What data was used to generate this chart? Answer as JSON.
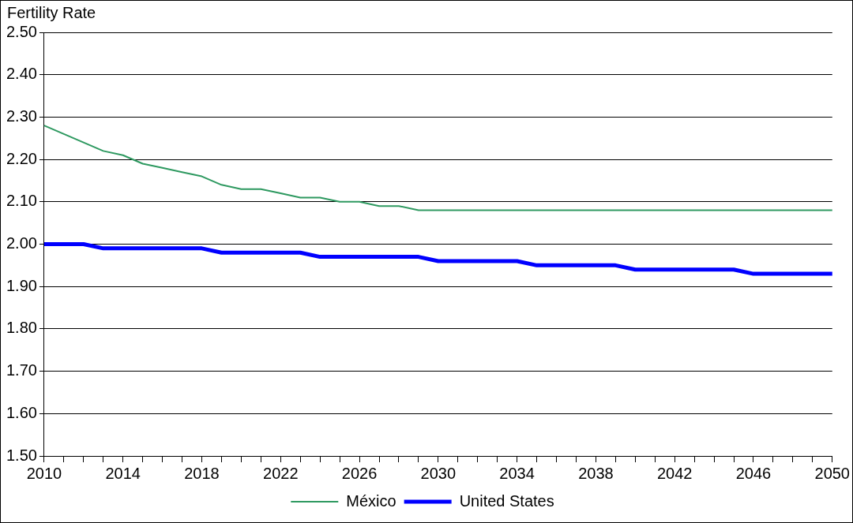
{
  "chart_data": {
    "type": "line",
    "ylabel": "Fertility Rate",
    "categories": [
      "2010",
      null,
      null,
      null,
      "2014",
      null,
      null,
      null,
      "2018",
      null,
      null,
      null,
      "2022",
      null,
      null,
      null,
      "2026",
      null,
      null,
      null,
      "2030",
      null,
      null,
      null,
      "2034",
      null,
      null,
      null,
      "2038",
      null,
      null,
      null,
      "2042",
      null,
      null,
      null,
      "2046",
      null,
      null,
      null,
      "2050"
    ],
    "series": [
      {
        "name": "México",
        "color": "#2e9960",
        "values": [
          2.28,
          2.26,
          2.24,
          2.22,
          2.21,
          2.19,
          2.18,
          2.17,
          2.16,
          2.14,
          2.13,
          2.13,
          2.12,
          2.11,
          2.11,
          2.1,
          2.1,
          2.09,
          2.09,
          2.08,
          2.08,
          2.08,
          2.08,
          2.08,
          2.08,
          2.08,
          2.08,
          2.08,
          2.08,
          2.08,
          2.08,
          2.08,
          2.08,
          2.08,
          2.08,
          2.08,
          2.08,
          2.08,
          2.08,
          2.08,
          2.08
        ]
      },
      {
        "name": "United States",
        "color": "#0000ff",
        "values": [
          2.0,
          2.0,
          2.0,
          1.99,
          1.99,
          1.99,
          1.99,
          1.99,
          1.99,
          1.98,
          1.98,
          1.98,
          1.98,
          1.98,
          1.97,
          1.97,
          1.97,
          1.97,
          1.97,
          1.97,
          1.96,
          1.96,
          1.96,
          1.96,
          1.96,
          1.95,
          1.95,
          1.95,
          1.95,
          1.95,
          1.94,
          1.94,
          1.94,
          1.94,
          1.94,
          1.94,
          1.93,
          1.93,
          1.93,
          1.93,
          1.93
        ]
      }
    ],
    "ylim": [
      1.5,
      2.5
    ],
    "yticks": [
      {
        "value": 1.5,
        "label": "1.50"
      },
      {
        "value": 1.6,
        "label": "1.60"
      },
      {
        "value": 1.7,
        "label": "1.70"
      },
      {
        "value": 1.8,
        "label": "1.80"
      },
      {
        "value": 1.9,
        "label": "1.90"
      },
      {
        "value": 2.0,
        "label": "2.00"
      },
      {
        "value": 2.1,
        "label": "2.10"
      },
      {
        "value": 2.2,
        "label": "2.20"
      },
      {
        "value": 2.3,
        "label": "2.30"
      },
      {
        "value": 2.4,
        "label": "2.40"
      },
      {
        "value": 2.5,
        "label": "2.50"
      }
    ],
    "grid": "y",
    "legend": "bottom",
    "marker": "none",
    "line_style": "solid"
  }
}
